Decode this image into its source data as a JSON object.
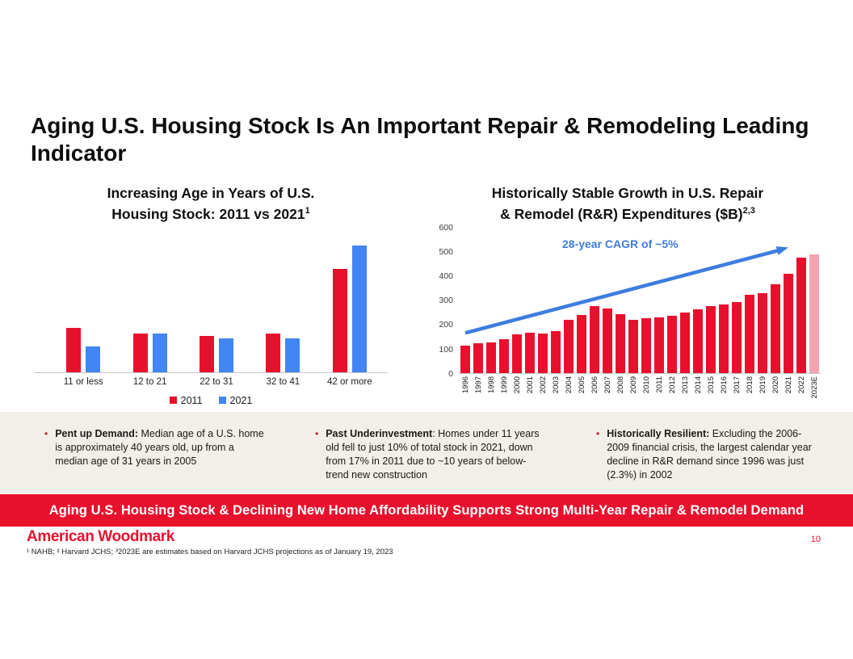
{
  "slide_title": "Aging U.S. Housing Stock Is An Important Repair & Remodeling Leading Indicator",
  "colors": {
    "red": "#e8112d",
    "blue": "#4285f4",
    "pink": "#f4a3b1",
    "arrow_blue": "#3d7ce0",
    "panel_beige": "#f1efe7",
    "banner_red": "#e8112d"
  },
  "chart_data": [
    {
      "type": "bar",
      "title": "Increasing Age in Years of U.S. Housing Stock: 2011 vs 2021",
      "title_line1": "Increasing Age in Years of U.S.",
      "title_line2": "Housing Stock: 2011 vs 2021",
      "title_sup": "1",
      "categories": [
        "11 or less",
        "12 to 21",
        "22 to 31",
        "32 to 41",
        "42 or more"
      ],
      "series": [
        {
          "name": "2011",
          "color": "#e8112d",
          "values": [
            17,
            15,
            14,
            15,
            40
          ]
        },
        {
          "name": "2021",
          "color": "#4285f4",
          "values": [
            10,
            15,
            13,
            13,
            49
          ]
        }
      ],
      "ylim": [
        0,
        55
      ],
      "grid": false,
      "legend_position": "bottom"
    },
    {
      "type": "bar",
      "title": "Historically Stable Growth in U.S. Repair & Remodel (R&R) Expenditures ($B)",
      "title_line1": "Historically Stable Growth in U.S. Repair",
      "title_line2": "& Remodel (R&R) Expenditures ($B)",
      "title_sup": "2,3",
      "x": [
        "1996",
        "1997",
        "1998",
        "1999",
        "2000",
        "2001",
        "2002",
        "2003",
        "2004",
        "2005",
        "2006",
        "2007",
        "2008",
        "2009",
        "2010",
        "2011",
        "2012",
        "2013",
        "2014",
        "2015",
        "2016",
        "2017",
        "2018",
        "2019",
        "2020",
        "2021",
        "2022",
        "2023E"
      ],
      "values": [
        113,
        121,
        127,
        138,
        158,
        166,
        162,
        172,
        218,
        238,
        275,
        264,
        243,
        218,
        224,
        229,
        235,
        247,
        260,
        275,
        280,
        290,
        322,
        328,
        363,
        407,
        475,
        487
      ],
      "bar_color": "#e8112d",
      "highlight_last_color": "#f4a3b1",
      "annotation": "28-year CAGR of ~5%",
      "annotation_color": "#3d7ce0",
      "yticks": [
        0,
        100,
        200,
        300,
        400,
        500,
        600
      ],
      "ylim": [
        0,
        600
      ],
      "grid": false
    }
  ],
  "bullets": [
    {
      "lead": "Pent up Demand:",
      "text": " Median age of a U.S. home is approximately 40 years old, up from a median age of 31 years in 2005"
    },
    {
      "lead": "Past Underinvestment",
      "text": ": Homes under 11 years old fell to just 10% of total stock in 2021, down from 17% in 2011 due to ~10 years of below-trend new construction"
    },
    {
      "lead": "Historically Resilient:",
      "text": " Excluding the 2006-2009 financial crisis, the largest calendar year decline in R&R demand since 1996 was just (2.3%) in 2002"
    }
  ],
  "banner_text": "Aging U.S. Housing Stock & Declining New Home Affordability Supports Strong Multi-Year Repair & Remodel Demand",
  "footer": {
    "logo_text": "American Woodmark",
    "footnote": "¹ NAHB; ² Harvard JCHS; ³2023E are estimates based on Harvard JCHS projections as of January 19, 2023",
    "page_number": "10"
  }
}
